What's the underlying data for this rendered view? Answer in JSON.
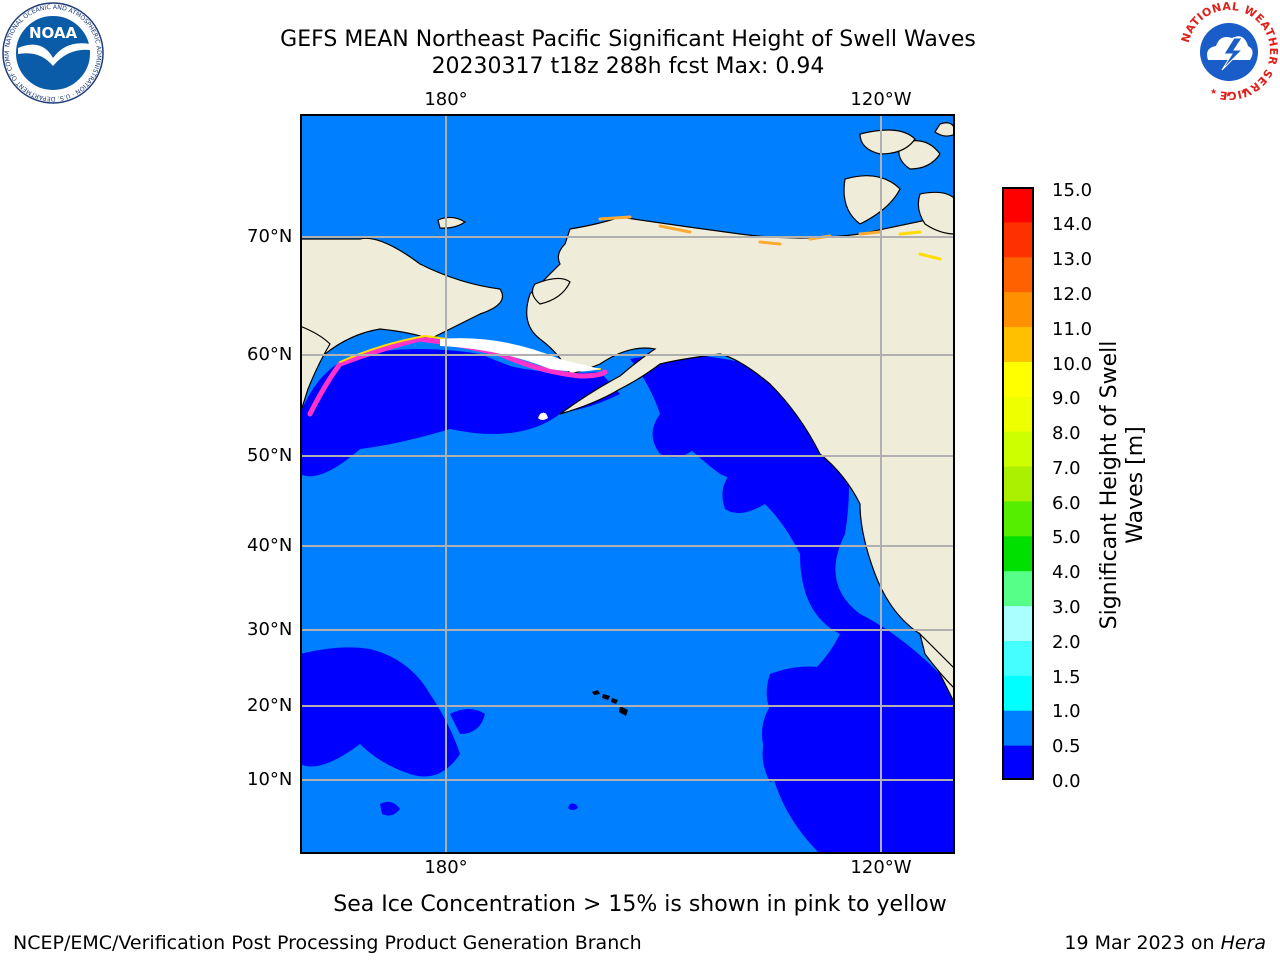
{
  "header": {
    "title_line1": "GEFS MEAN Northeast Pacific Significant Height of Swell Waves",
    "title_line2": "20230317 t18z 288h fcst   Max: 0.94"
  },
  "logos": {
    "noaa_text": "NOAA",
    "noaa_ring": "NATIONAL OCEANIC AND ATMOSPHERIC ADMINISTRATION · U.S. DEPARTMENT OF COMMERCE ·",
    "nws_ring": "NATIONAL WEATHER SERVICE"
  },
  "map": {
    "lon_labels": [
      "180°",
      "120°W"
    ],
    "lat_labels": [
      "70°N",
      "60°N",
      "50°N",
      "40°N",
      "30°N",
      "20°N",
      "10°N"
    ],
    "colors": {
      "land": "#efedd9",
      "ocean_low": "#0000ff",
      "ocean_mid": "#0080ff",
      "ice_edge": "#ff33cc",
      "ice_yellow": "#ffdd00",
      "grid": "#b0b0b0"
    }
  },
  "colorbar": {
    "title": "Significant Height of Swell Waves [m]",
    "ticks": [
      "15.0",
      "14.0",
      "13.0",
      "12.0",
      "11.0",
      "10.0",
      "9.0",
      "8.0",
      "7.0",
      "6.0",
      "5.0",
      "4.0",
      "3.0",
      "2.0",
      "1.5",
      "1.0",
      "0.5",
      "0.0"
    ],
    "colors": [
      "#0000ff",
      "#0080ff",
      "#00ffff",
      "#45ffff",
      "#aaffff",
      "#55ff88",
      "#00e000",
      "#55ee00",
      "#aaf000",
      "#ccff00",
      "#eeff00",
      "#ffff00",
      "#ffc000",
      "#ff9000",
      "#ff6000",
      "#ff3000",
      "#ff0000"
    ]
  },
  "footer": {
    "ice_note": "Sea Ice Concentration > 15% is shown in pink to yellow",
    "branch": "NCEP/EMC/Verification Post Processing Product Generation Branch",
    "date": "19 Mar 2023 on ",
    "host": "Hera"
  }
}
